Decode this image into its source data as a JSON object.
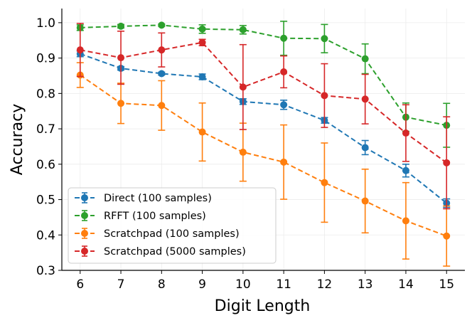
{
  "chart_data": {
    "type": "line",
    "title": "",
    "xlabel": "Digit Length",
    "ylabel": "Accuracy",
    "x": [
      6,
      7,
      8,
      9,
      10,
      11,
      12,
      13,
      14,
      15
    ],
    "x_ticks": [
      "6",
      "7",
      "8",
      "9",
      "10",
      "11",
      "12",
      "13",
      "14",
      "15"
    ],
    "ylim": [
      0.3,
      1.04
    ],
    "y_ticks": [
      "0.3",
      "0.4",
      "0.5",
      "0.6",
      "0.7",
      "0.8",
      "0.9",
      "1.0"
    ],
    "grid": true,
    "legend_position": "lower-left",
    "series": [
      {
        "name": "Direct (100 samples)",
        "color": "#1f77b4",
        "values": [
          0.912,
          0.871,
          0.856,
          0.847,
          0.777,
          0.768,
          0.724,
          0.647,
          0.582,
          0.49
        ],
        "errors": [
          0.008,
          0.005,
          0.004,
          0.008,
          0.008,
          0.013,
          0.008,
          0.02,
          0.018,
          0.012
        ]
      },
      {
        "name": "RFFT (100 samples)",
        "color": "#2ca02c",
        "values": [
          0.986,
          0.99,
          0.993,
          0.982,
          0.98,
          0.956,
          0.955,
          0.898,
          0.733,
          0.71
        ],
        "errors": [
          0.008,
          0.005,
          0.003,
          0.012,
          0.012,
          0.048,
          0.04,
          0.042,
          0.04,
          0.062
        ]
      },
      {
        "name": "Scratchpad (100 samples)",
        "color": "#ff7f0e",
        "values": [
          0.852,
          0.772,
          0.766,
          0.691,
          0.634,
          0.606,
          0.548,
          0.496,
          0.44,
          0.397
        ],
        "errors": [
          0.035,
          0.057,
          0.07,
          0.082,
          0.082,
          0.105,
          0.112,
          0.09,
          0.108,
          0.085
        ]
      },
      {
        "name": "Scratchpad (5000 samples)",
        "color": "#d62728",
        "values": [
          0.923,
          0.901,
          0.923,
          0.944,
          0.818,
          0.861,
          0.794,
          0.784,
          0.688,
          0.604
        ],
        "errors": [
          0.075,
          0.075,
          0.048,
          0.009,
          0.12,
          0.045,
          0.09,
          0.07,
          0.08,
          0.13
        ]
      }
    ]
  }
}
